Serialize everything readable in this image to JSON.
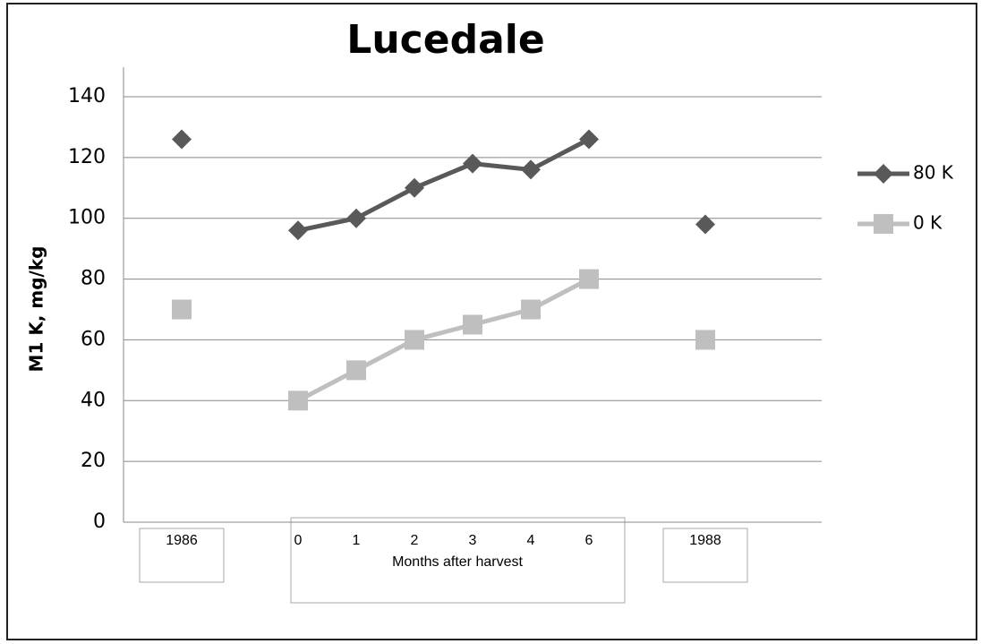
{
  "chart_data": {
    "type": "line",
    "title": "Lucedale",
    "y_label": "M1 K, mg/kg",
    "annotation": "Months after harvest",
    "categories": [
      null,
      "1986",
      null,
      "0",
      "1",
      "2",
      "3",
      "4",
      "6",
      null,
      "1988",
      null,
      null
    ],
    "series": [
      {
        "name": "80 K",
        "color": "#595959",
        "marker": "diamond",
        "values": [
          null,
          126,
          null,
          96,
          100,
          110,
          118,
          116,
          126,
          null,
          98,
          null,
          null
        ]
      },
      {
        "name": "0 K",
        "color": "#bfbfbf",
        "marker": "square",
        "values": [
          null,
          70,
          null,
          40,
          50,
          60,
          65,
          70,
          80,
          null,
          60,
          null,
          null
        ]
      }
    ],
    "ylim": [
      0,
      140
    ],
    "yticks": [
      0,
      20,
      40,
      60,
      80,
      100,
      120,
      140
    ],
    "grid": true,
    "legend": "right"
  }
}
